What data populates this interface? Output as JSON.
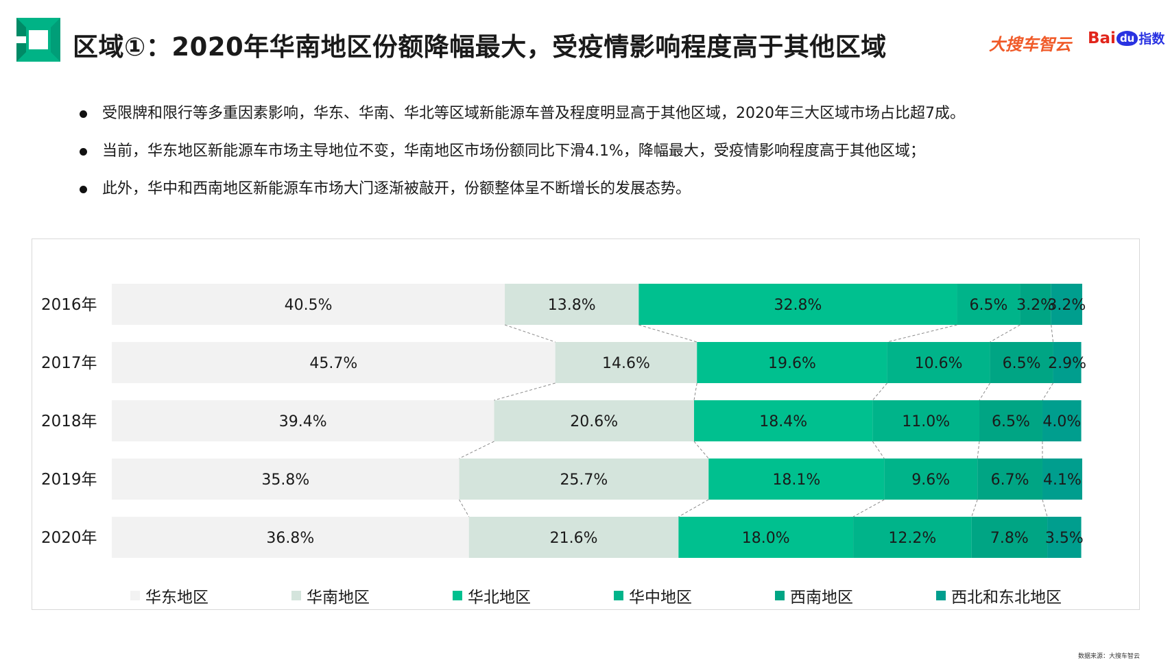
{
  "header": {
    "title": "区域①：2020年华南地区份额降幅最大，受疫情影响程度高于其他区域",
    "brand_sohu": "大搜车智云",
    "brand_baidu_bai": "Bai",
    "brand_baidu_du": "du",
    "brand_baidu_index": "指数"
  },
  "bullets": [
    "受限牌和限行等多重因素影响，华东、华南、华北等区域新能源车普及程度明显高于其他区域，2020年三大区域市场占比超7成。",
    "当前，华东地区新能源车市场主导地位不变，华南地区市场份额同比下滑4.1%，降幅最大，受疫情影响程度高于其他区域；",
    "此外，华中和西南地区新能源车市场大门逐渐被敲开，份额整体呈不断增长的发展态势。"
  ],
  "chart_data": {
    "type": "bar",
    "orientation": "horizontal",
    "stacked": true,
    "normalized": true,
    "categories": [
      "2016年",
      "2017年",
      "2018年",
      "2019年",
      "2020年"
    ],
    "series": [
      {
        "name": "华东地区",
        "color": "#f2f2f2",
        "values": [
          40.5,
          45.7,
          39.4,
          35.8,
          36.8
        ],
        "labels": [
          "40.5%",
          "45.7%",
          "39.4%",
          "35.8%",
          "36.8%"
        ]
      },
      {
        "name": "华南地区",
        "color": "#d4e4dc",
        "values": [
          13.8,
          14.6,
          20.6,
          25.7,
          21.6
        ],
        "labels": [
          "13.8%",
          "14.6%",
          "20.6%",
          "25.7%",
          "21.6%"
        ]
      },
      {
        "name": "华北地区",
        "color": "#00c08f",
        "values": [
          32.8,
          19.6,
          18.4,
          18.1,
          18.0
        ],
        "labels": [
          "32.8%",
          "19.6%",
          "18.4%",
          "18.1%",
          "18.0%"
        ]
      },
      {
        "name": "华中地区",
        "color": "#00b48a",
        "values": [
          6.5,
          10.6,
          11.0,
          9.6,
          12.2
        ],
        "labels": [
          "6.5%",
          "10.6%",
          "11.0%",
          "9.6%",
          "12.2%"
        ]
      },
      {
        "name": "西南地区",
        "color": "#00a584",
        "values": [
          3.2,
          6.5,
          6.5,
          6.7,
          7.8
        ],
        "labels": [
          "3.2%",
          "6.5%",
          "6.5%",
          "6.7%",
          "7.8%"
        ]
      },
      {
        "name": "西北和东北地区",
        "color": "#009e8e",
        "values": [
          3.2,
          2.9,
          4.0,
          4.1,
          3.5
        ],
        "labels": [
          "3.2%",
          "2.9%",
          "4.0%",
          "4.1%",
          "3.5%"
        ]
      }
    ],
    "xlim": [
      0,
      100
    ],
    "connector_lines": true,
    "legend_position": "bottom",
    "grid": false
  },
  "footer": {
    "source": "数据来源：大搜车智云"
  }
}
